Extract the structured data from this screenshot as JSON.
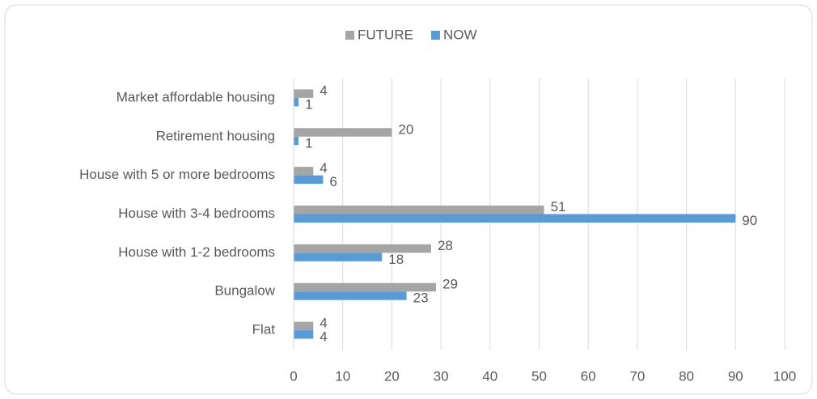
{
  "chart_data": {
    "type": "bar",
    "orientation": "horizontal",
    "categories": [
      "Market affordable housing",
      "Retirement housing",
      "House with 5 or more bedrooms",
      "House with 3-4 bedrooms",
      "House with 1-2 bedrooms",
      "Bungalow",
      "Flat"
    ],
    "series": [
      {
        "name": "FUTURE",
        "color": "#a5a5a5",
        "values": [
          4,
          20,
          4,
          51,
          28,
          29,
          4
        ]
      },
      {
        "name": "NOW",
        "color": "#5b9bd5",
        "values": [
          1,
          1,
          6,
          90,
          18,
          23,
          4
        ]
      }
    ],
    "xlim": [
      0,
      100
    ],
    "xticks": [
      0,
      10,
      20,
      30,
      40,
      50,
      60,
      70,
      80,
      90,
      100
    ],
    "grid": true,
    "legend": "top"
  }
}
